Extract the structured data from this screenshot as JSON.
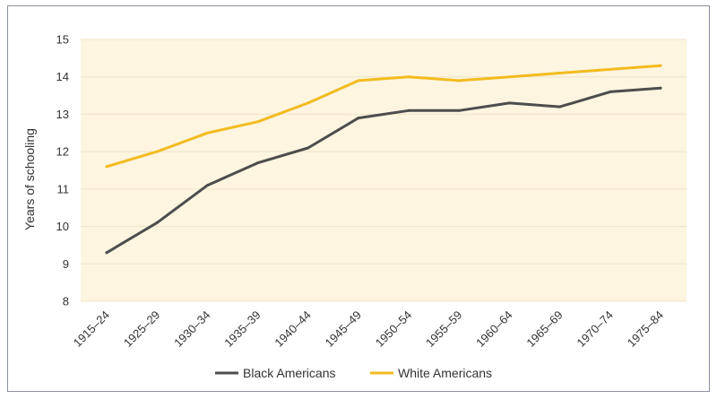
{
  "chart_data": {
    "type": "line",
    "title": "",
    "xlabel": "",
    "ylabel": "Years of schooling",
    "ylim": [
      8,
      15
    ],
    "y_ticks": [
      "8",
      "9",
      "10",
      "11",
      "12",
      "13",
      "14",
      "15"
    ],
    "categories": [
      "1915–24",
      "1925–29",
      "1930–34",
      "1935–39",
      "1940–44",
      "1945–49",
      "1950–54",
      "1955–59",
      "1960–64",
      "1965–69",
      "1970–74",
      "1975–84"
    ],
    "grid": true,
    "legend_position": "bottom",
    "plot_background": "#fdf5e0",
    "series": [
      {
        "name": "Black Americans",
        "color": "#4d4d4d",
        "values": [
          9.3,
          10.1,
          11.1,
          11.7,
          12.1,
          12.9,
          13.1,
          13.1,
          13.3,
          13.2,
          13.6,
          13.7
        ]
      },
      {
        "name": "White Americans",
        "color": "#f2bb1f",
        "values": [
          11.6,
          12.0,
          12.5,
          12.8,
          13.3,
          13.9,
          14.0,
          13.9,
          14.0,
          14.1,
          14.2,
          14.3
        ]
      }
    ]
  }
}
